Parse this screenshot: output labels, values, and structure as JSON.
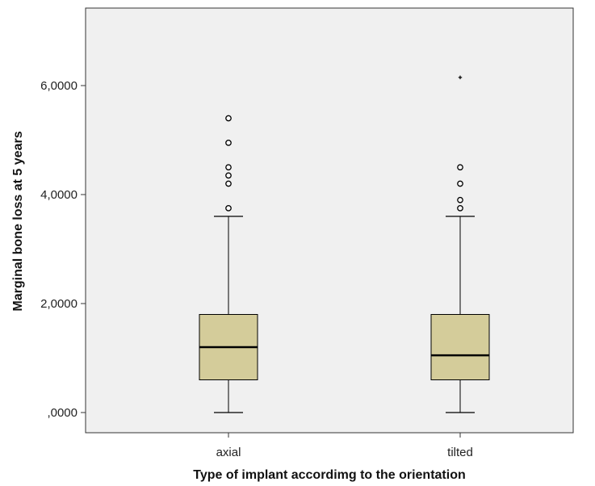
{
  "chart_data": {
    "type": "boxplot",
    "title": "",
    "xlabel": "Type of implant accordimg to the orientation",
    "ylabel": "Marginal bone loss at 5 years",
    "ylim": [
      -0.35,
      7.4
    ],
    "y_ticks": [
      {
        "value": 0,
        "label": ",0000"
      },
      {
        "value": 2,
        "label": "2,0000"
      },
      {
        "value": 4,
        "label": "4,0000"
      },
      {
        "value": 6,
        "label": "6,0000"
      }
    ],
    "categories": [
      "axial",
      "tilted"
    ],
    "boxes": [
      {
        "category": "axial",
        "whisker_low": 0.0,
        "q1": 0.6,
        "median": 1.2,
        "q3": 1.8,
        "whisker_high": 3.6,
        "outliers": [
          3.75,
          4.2,
          4.35,
          4.5,
          4.95,
          5.4
        ],
        "extremes": []
      },
      {
        "category": "tilted",
        "whisker_low": 0.0,
        "q1": 0.6,
        "median": 1.05,
        "q3": 1.8,
        "whisker_high": 3.6,
        "outliers": [
          3.75,
          3.9,
          4.2,
          4.5
        ],
        "extremes": [
          6.15
        ]
      }
    ],
    "grid": false,
    "legend": "none",
    "colors": {
      "plot_background": "#f0f0f0",
      "box_fill": "#d4cc9a",
      "line": "#000000"
    }
  }
}
